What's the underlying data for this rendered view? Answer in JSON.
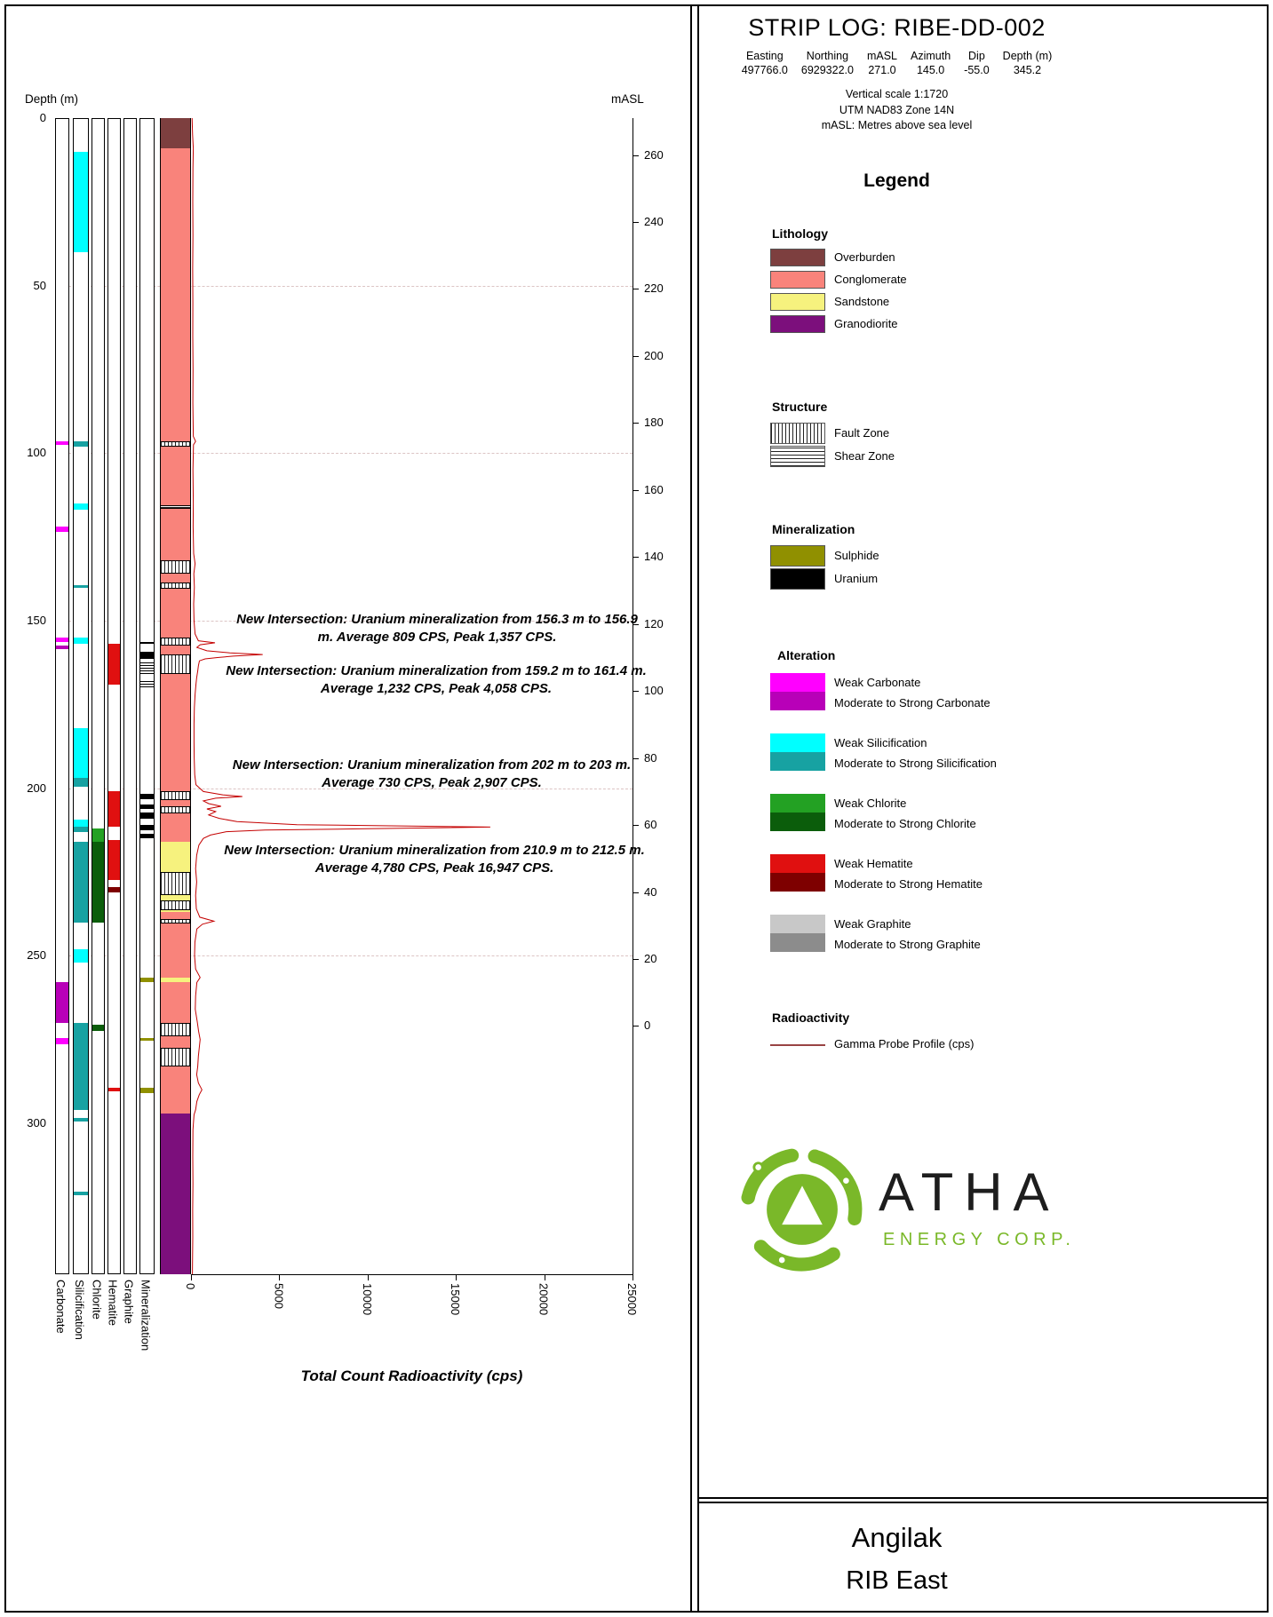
{
  "page": {
    "title": "STRIP LOG: RIBE-DD-002",
    "project": "Angilak",
    "area": "RIB East"
  },
  "hole_info": {
    "fields": [
      {
        "label": "Easting",
        "value": "497766.0"
      },
      {
        "label": "Northing",
        "value": "6929322.0"
      },
      {
        "label": "mASL",
        "value": "271.0"
      },
      {
        "label": "Azimuth",
        "value": "145.0"
      },
      {
        "label": "Dip",
        "value": "-55.0"
      },
      {
        "label": "Depth (m)",
        "value": "345.2"
      }
    ],
    "notes": [
      "Vertical scale 1:1720",
      "UTM NAD83 Zone 14N",
      "mASL: Metres above sea level"
    ]
  },
  "legend": {
    "title": "Legend",
    "lithology": {
      "title": "Lithology",
      "items": [
        {
          "label": "Overburden",
          "color": "#7d3f3f"
        },
        {
          "label": "Conglomerate",
          "color": "#f9837b"
        },
        {
          "label": "Sandstone",
          "color": "#f6f27e"
        },
        {
          "label": "Granodiorite",
          "color": "#7c0f7c"
        }
      ]
    },
    "structure": {
      "title": "Structure",
      "items": [
        {
          "label": "Fault Zone",
          "pattern": "fault"
        },
        {
          "label": "Shear Zone",
          "pattern": "shear"
        }
      ]
    },
    "mineralization": {
      "title": "Mineralization",
      "items": [
        {
          "label": "Sulphide",
          "color": "#909000"
        },
        {
          "label": "Uranium",
          "color": "#000000"
        }
      ]
    },
    "alteration": {
      "title": "Alteration",
      "groups": [
        {
          "weak": "Weak Carbonate",
          "strong": "Moderate to Strong Carbonate",
          "weak_color": "#ff00ff",
          "strong_color": "#b800b8"
        },
        {
          "weak": "Weak Silicification",
          "strong": "Moderate to Strong Silicification",
          "weak_color": "#00ffff",
          "strong_color": "#17a2a2"
        },
        {
          "weak": "Weak Chlorite",
          "strong": "Moderate to Strong Chlorite",
          "weak_color": "#23a123",
          "strong_color": "#0b5d0b"
        },
        {
          "weak": "Weak Hematite",
          "strong": "Moderate to Strong Hematite",
          "weak_color": "#e01010",
          "strong_color": "#7e0000"
        },
        {
          "weak": "Weak Graphite",
          "strong": "Moderate to Strong Graphite",
          "weak_color": "#c8c8c8",
          "strong_color": "#8c8c8c"
        }
      ]
    },
    "radioactivity": {
      "title": "Radioactivity",
      "items": [
        {
          "label": "Gamma Probe Profile (cps)",
          "line_color": "#994444"
        }
      ]
    }
  },
  "logo": {
    "name": "ATHA",
    "subtitle": "ENERGY CORP.",
    "green": "#7ab829"
  },
  "chart_data": {
    "type": "strip-log",
    "depth_axis": {
      "label": "Depth (m)",
      "min": 0,
      "max": 345.2,
      "ticks": [
        0,
        50,
        100,
        150,
        200,
        250,
        300
      ]
    },
    "masl_axis": {
      "label": "mASL",
      "surface": 271.0,
      "ticks": [
        260,
        240,
        220,
        200,
        180,
        160,
        140,
        120,
        100,
        80,
        60,
        40,
        20,
        0
      ]
    },
    "gamma_axis": {
      "label": "Total Count Radioactivity (cps)",
      "min": 0,
      "max": 25000,
      "ticks": [
        0,
        5000,
        10000,
        15000,
        20000,
        25000
      ]
    },
    "track_labels": [
      "Carbonate",
      "Silicification",
      "Chlorite",
      "Hematite",
      "Graphite",
      "Mineralization"
    ],
    "lithology": [
      {
        "from": 0,
        "to": 9,
        "unit": "Overburden"
      },
      {
        "from": 9,
        "to": 216,
        "unit": "Conglomerate"
      },
      {
        "from": 216,
        "to": 237,
        "unit": "Sandstone"
      },
      {
        "from": 237,
        "to": 256.5,
        "unit": "Conglomerate"
      },
      {
        "from": 256.5,
        "to": 258,
        "unit": "Sandstone"
      },
      {
        "from": 258,
        "to": 270,
        "unit": "Conglomerate"
      },
      {
        "from": 270,
        "to": 271.5,
        "unit": "Sandstone"
      },
      {
        "from": 271.5,
        "to": 297,
        "unit": "Conglomerate"
      },
      {
        "from": 297,
        "to": 345.2,
        "unit": "Granodiorite"
      }
    ],
    "structure": [
      {
        "from": 96.5,
        "to": 98,
        "type": "Fault Zone"
      },
      {
        "from": 115.5,
        "to": 116.5,
        "type": "Shear Zone"
      },
      {
        "from": 132,
        "to": 136,
        "type": "Fault Zone"
      },
      {
        "from": 138.5,
        "to": 140.5,
        "type": "Fault Zone"
      },
      {
        "from": 155,
        "to": 157.5,
        "type": "Fault Zone"
      },
      {
        "from": 160,
        "to": 166,
        "type": "Fault Zone"
      },
      {
        "from": 201,
        "to": 203.5,
        "type": "Fault Zone"
      },
      {
        "from": 205.5,
        "to": 207.5,
        "type": "Fault Zone"
      },
      {
        "from": 225,
        "to": 232,
        "type": "Fault Zone"
      },
      {
        "from": 233.5,
        "to": 236.5,
        "type": "Fault Zone"
      },
      {
        "from": 239,
        "to": 240.5,
        "type": "Fault Zone"
      },
      {
        "from": 270,
        "to": 274,
        "type": "Fault Zone"
      },
      {
        "from": 277.5,
        "to": 283,
        "type": "Fault Zone"
      }
    ],
    "alteration": {
      "carbonate": [
        {
          "from": 96.5,
          "to": 97.5,
          "grade": "weak"
        },
        {
          "from": 122,
          "to": 123.5,
          "grade": "weak"
        },
        {
          "from": 155,
          "to": 156.5,
          "grade": "weak"
        },
        {
          "from": 157.5,
          "to": 158.5,
          "grade": "strong"
        },
        {
          "from": 258,
          "to": 270,
          "grade": "strong"
        },
        {
          "from": 274.5,
          "to": 276.5,
          "grade": "weak"
        }
      ],
      "silicification": [
        {
          "from": 10,
          "to": 40,
          "grade": "weak"
        },
        {
          "from": 96.5,
          "to": 98,
          "grade": "strong"
        },
        {
          "from": 115,
          "to": 117,
          "grade": "weak"
        },
        {
          "from": 139.5,
          "to": 140.2,
          "grade": "strong"
        },
        {
          "from": 155,
          "to": 157,
          "grade": "weak"
        },
        {
          "from": 182,
          "to": 197,
          "grade": "weak"
        },
        {
          "from": 197,
          "to": 199.5,
          "grade": "strong"
        },
        {
          "from": 209.5,
          "to": 211.5,
          "grade": "weak"
        },
        {
          "from": 211.5,
          "to": 213,
          "grade": "strong"
        },
        {
          "from": 216,
          "to": 240,
          "grade": "strong"
        },
        {
          "from": 248,
          "to": 252,
          "grade": "weak"
        },
        {
          "from": 270,
          "to": 296,
          "grade": "strong"
        },
        {
          "from": 298.5,
          "to": 299.5,
          "grade": "strong"
        },
        {
          "from": 320.5,
          "to": 321.5,
          "grade": "strong"
        }
      ],
      "chlorite": [
        {
          "from": 212,
          "to": 216,
          "grade": "weak"
        },
        {
          "from": 216,
          "to": 240,
          "grade": "strong"
        },
        {
          "from": 270.5,
          "to": 272.5,
          "grade": "strong"
        }
      ],
      "hematite": [
        {
          "from": 157,
          "to": 169,
          "grade": "weak"
        },
        {
          "from": 201,
          "to": 211.5,
          "grade": "weak"
        },
        {
          "from": 215.5,
          "to": 227.5,
          "grade": "weak"
        },
        {
          "from": 229.5,
          "to": 231,
          "grade": "strong"
        },
        {
          "from": 289.5,
          "to": 290.5,
          "grade": "weak"
        }
      ],
      "graphite": []
    },
    "mineralization": [
      {
        "from": 156.3,
        "to": 156.9,
        "type": "Uranium"
      },
      {
        "from": 159.2,
        "to": 161.4,
        "type": "Uranium"
      },
      {
        "from": 162.5,
        "to": 166,
        "type": "Uranium",
        "hatched": true
      },
      {
        "from": 168,
        "to": 170,
        "type": "Uranium",
        "hatched": true
      },
      {
        "from": 201.8,
        "to": 203.2,
        "type": "Uranium"
      },
      {
        "from": 205,
        "to": 206.2,
        "type": "Uranium"
      },
      {
        "from": 207.2,
        "to": 209,
        "type": "Uranium"
      },
      {
        "from": 210.9,
        "to": 212.5,
        "type": "Uranium"
      },
      {
        "from": 213.5,
        "to": 215,
        "type": "Uranium"
      },
      {
        "from": 256.5,
        "to": 258,
        "type": "Sulphide"
      },
      {
        "from": 274.5,
        "to": 275.5,
        "type": "Sulphide"
      },
      {
        "from": 289.5,
        "to": 291,
        "type": "Sulphide"
      }
    ],
    "intersections": [
      {
        "text": "New Intersection: Uranium mineralization from 156.3 m to 156.9 m. Average 809 CPS, Peak 1,357 CPS.",
        "from_m": 156.3,
        "to_m": 156.9,
        "avg_cps": 809,
        "peak_cps": 1357
      },
      {
        "text": "New Intersection: Uranium mineralization from 159.2 m to 161.4 m. Average 1,232 CPS, Peak 4,058 CPS.",
        "from_m": 159.2,
        "to_m": 161.4,
        "avg_cps": 1232,
        "peak_cps": 4058
      },
      {
        "text": "New Intersection: Uranium mineralization from 202 m to 203 m. Average 730 CPS, Peak 2,907 CPS.",
        "from_m": 202,
        "to_m": 203,
        "avg_cps": 730,
        "peak_cps": 2907
      },
      {
        "text": "New Intersection: Uranium mineralization from 210.9 m to 212.5 m. Average 4,780 CPS, Peak 16,947 CPS.",
        "from_m": 210.9,
        "to_m": 212.5,
        "avg_cps": 4780,
        "peak_cps": 16947
      }
    ],
    "gamma_profile": [
      [
        0,
        60
      ],
      [
        5,
        90
      ],
      [
        9,
        130
      ],
      [
        15,
        110
      ],
      [
        25,
        100
      ],
      [
        35,
        110
      ],
      [
        45,
        95
      ],
      [
        55,
        105
      ],
      [
        65,
        100
      ],
      [
        75,
        115
      ],
      [
        85,
        105
      ],
      [
        95,
        130
      ],
      [
        96.5,
        260
      ],
      [
        97.5,
        140
      ],
      [
        105,
        110
      ],
      [
        115,
        130
      ],
      [
        122,
        120
      ],
      [
        130,
        150
      ],
      [
        133,
        230
      ],
      [
        136,
        160
      ],
      [
        140,
        190
      ],
      [
        145,
        150
      ],
      [
        150,
        170
      ],
      [
        154,
        230
      ],
      [
        156,
        420
      ],
      [
        156.6,
        1357
      ],
      [
        157.2,
        520
      ],
      [
        158,
        330
      ],
      [
        159,
        900
      ],
      [
        159.6,
        2200
      ],
      [
        160.1,
        4058
      ],
      [
        160.6,
        2400
      ],
      [
        161,
        1500
      ],
      [
        161.4,
        800
      ],
      [
        162,
        480
      ],
      [
        163.5,
        420
      ],
      [
        165,
        380
      ],
      [
        167,
        320
      ],
      [
        169,
        280
      ],
      [
        172,
        230
      ],
      [
        176,
        190
      ],
      [
        181,
        170
      ],
      [
        186,
        170
      ],
      [
        191,
        180
      ],
      [
        196,
        210
      ],
      [
        199,
        280
      ],
      [
        201,
        700
      ],
      [
        202,
        1800
      ],
      [
        202.5,
        2907
      ],
      [
        203,
        1400
      ],
      [
        203.8,
        700
      ],
      [
        204.6,
        1000
      ],
      [
        205.4,
        1700
      ],
      [
        206.2,
        900
      ],
      [
        207,
        1400
      ],
      [
        208,
        1000
      ],
      [
        209,
        1600
      ],
      [
        210,
        2600
      ],
      [
        210.9,
        6000
      ],
      [
        211.6,
        16947
      ],
      [
        212.1,
        10000
      ],
      [
        212.5,
        4200
      ],
      [
        213,
        2000
      ],
      [
        214,
        1100
      ],
      [
        215,
        700
      ],
      [
        217,
        450
      ],
      [
        220,
        320
      ],
      [
        224,
        260
      ],
      [
        228,
        320
      ],
      [
        232,
        260
      ],
      [
        236,
        300
      ],
      [
        238.5,
        500
      ],
      [
        239.7,
        1300
      ],
      [
        240.6,
        650
      ],
      [
        242,
        330
      ],
      [
        246,
        220
      ],
      [
        250,
        200
      ],
      [
        254,
        260
      ],
      [
        256.5,
        520
      ],
      [
        258,
        330
      ],
      [
        262,
        260
      ],
      [
        266,
        240
      ],
      [
        270,
        360
      ],
      [
        272.5,
        430
      ],
      [
        275,
        520
      ],
      [
        277.5,
        470
      ],
      [
        280,
        420
      ],
      [
        283,
        380
      ],
      [
        285.5,
        320
      ],
      [
        288,
        420
      ],
      [
        290,
        620
      ],
      [
        291.5,
        470
      ],
      [
        293.5,
        330
      ],
      [
        296,
        260
      ],
      [
        297.5,
        170
      ],
      [
        302,
        110
      ],
      [
        310,
        100
      ],
      [
        318,
        110
      ],
      [
        326,
        95
      ],
      [
        334,
        100
      ],
      [
        342,
        85
      ],
      [
        345.2,
        80
      ]
    ]
  }
}
